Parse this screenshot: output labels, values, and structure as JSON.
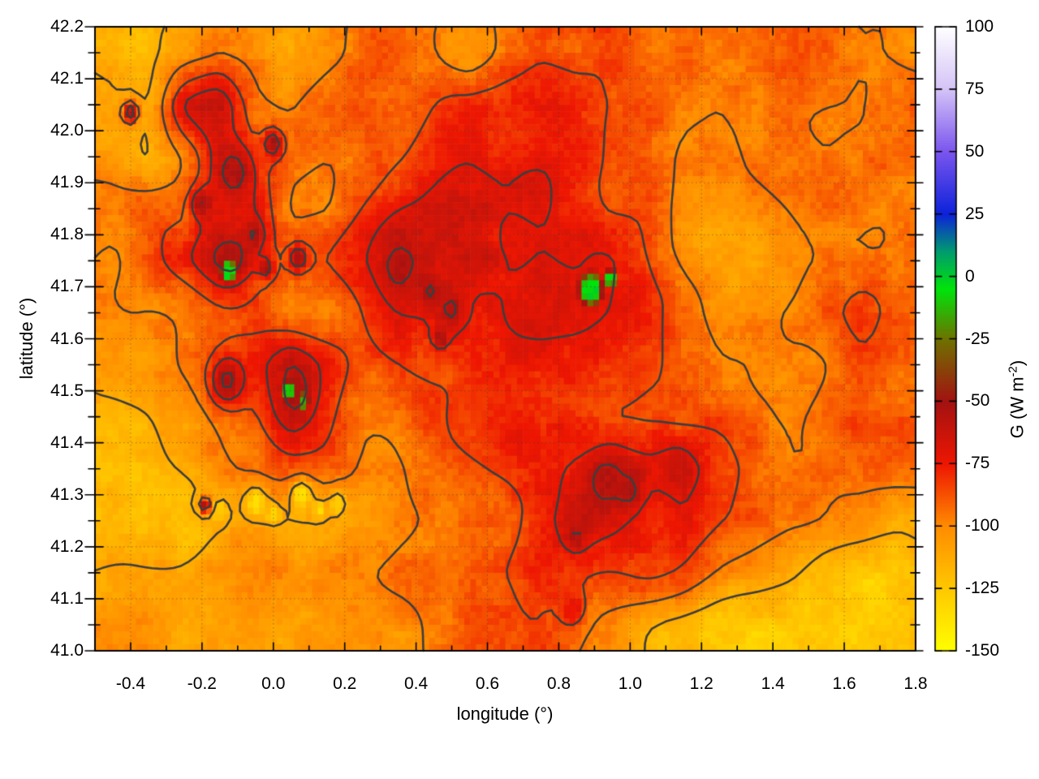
{
  "chart_data": {
    "type": "heatmap",
    "subtype": "pm3d map with contour lines",
    "title": "",
    "xlabel": "longitude (°)",
    "ylabel": "latitude (°)",
    "xlim": [
      -0.5,
      1.8
    ],
    "ylim": [
      41.0,
      42.2
    ],
    "grid_style": "dotted at major ticks",
    "xticks": {
      "values": [
        -0.4,
        -0.2,
        0.0,
        0.2,
        0.4,
        0.6,
        0.8,
        1.0,
        1.2,
        1.4,
        1.6,
        1.8
      ],
      "labels": [
        "-0.4",
        "-0.2",
        "0.0",
        "0.2",
        "0.4",
        "0.6",
        "0.8",
        "1.0",
        "1.2",
        "1.4",
        "1.6",
        "1.8"
      ],
      "minor_values": [
        -0.5,
        -0.3,
        -0.1,
        0.1,
        0.3,
        0.5,
        0.7,
        0.9,
        1.1,
        1.3,
        1.5,
        1.7
      ]
    },
    "yticks": {
      "values": [
        41.0,
        41.1,
        41.2,
        41.3,
        41.4,
        41.5,
        41.6,
        41.7,
        41.8,
        41.9,
        42.0,
        42.1,
        42.2
      ],
      "labels": [
        "41.0",
        "41.1",
        "41.2",
        "41.3",
        "41.4",
        "41.5",
        "41.6",
        "41.7",
        "41.8",
        "41.9",
        "42.0",
        "42.1",
        "42.2"
      ],
      "minor_values": [
        41.05,
        41.15,
        41.25,
        41.35,
        41.45,
        41.55,
        41.65,
        41.75,
        41.85,
        41.95,
        42.05,
        42.15
      ]
    },
    "colorbar": {
      "label_prefix": "G (W m",
      "label_sup": "-2",
      "label_suffix": ")",
      "range": [
        -150,
        100
      ],
      "tick_values": [
        100,
        75,
        50,
        25,
        0,
        -25,
        -50,
        -75,
        -100,
        -125,
        -150
      ],
      "tick_labels": [
        "100",
        "75",
        "50",
        "25",
        "0",
        "-25",
        "-50",
        "-75",
        "-100",
        "-125",
        "-150"
      ],
      "palette": [
        {
          "v": -150,
          "c": "#ffff00"
        },
        {
          "v": -125,
          "c": "#ffc800"
        },
        {
          "v": -100,
          "c": "#ff8c00"
        },
        {
          "v": -75,
          "c": "#ee1602"
        },
        {
          "v": -50,
          "c": "#a31211"
        },
        {
          "v": -25,
          "c": "#6e7200"
        },
        {
          "v": -5,
          "c": "#00e40a"
        },
        {
          "v": 10,
          "c": "#009c6e"
        },
        {
          "v": 25,
          "c": "#0c22da"
        },
        {
          "v": 50,
          "c": "#7b55ee"
        },
        {
          "v": 75,
          "c": "#d4c3f7"
        },
        {
          "v": 100,
          "c": "#ffffff"
        }
      ]
    },
    "contour_levels": [
      -112,
      -97,
      -84,
      -72,
      -60
    ],
    "colors": {
      "contour": "#3d3d3d",
      "border": "#000000",
      "grid_dots": "rgba(60,60,60,0.5)",
      "background": "#ffffff"
    },
    "heatmap_grid": {
      "units": "W m^-2",
      "lon": [
        -0.45,
        -0.35,
        -0.25,
        -0.15,
        -0.05,
        0.05,
        0.15,
        0.25,
        0.35,
        0.45,
        0.55,
        0.65,
        0.75,
        0.85,
        0.95,
        1.05,
        1.15,
        1.25,
        1.35,
        1.45,
        1.55,
        1.65,
        1.75
      ],
      "lat": [
        42.15,
        42.05,
        41.95,
        41.85,
        41.75,
        41.65,
        41.55,
        41.45,
        41.35,
        41.25,
        41.15,
        41.05
      ],
      "values_wm2": [
        [
          -112,
          -118,
          -112,
          -105,
          -108,
          -112,
          -100,
          -95,
          -100,
          -95,
          -105,
          -88,
          -82,
          -90,
          -85,
          -95,
          -90,
          -92,
          -95,
          -90,
          -95,
          -100,
          -98
        ],
        [
          -105,
          -115,
          -72,
          -60,
          -95,
          -100,
          -90,
          -85,
          -90,
          -88,
          -85,
          -75,
          -65,
          -70,
          -80,
          -82,
          -90,
          -95,
          -92,
          -88,
          -92,
          -95,
          -90
        ],
        [
          -98,
          -112,
          -95,
          -70,
          -85,
          -90,
          -95,
          -92,
          -85,
          -80,
          -78,
          -82,
          -78,
          -75,
          -82,
          -85,
          -95,
          -100,
          -98,
          -95,
          -98,
          -95,
          -92
        ],
        [
          -88,
          -85,
          -90,
          -75,
          -72,
          -100,
          -98,
          -85,
          -75,
          -72,
          -70,
          -75,
          -72,
          -78,
          -85,
          -80,
          -98,
          -105,
          -102,
          -98,
          -95,
          -92,
          -95
        ],
        [
          -95,
          -90,
          -78,
          -58,
          -80,
          -95,
          -85,
          -78,
          -62,
          -70,
          -68,
          -72,
          -70,
          -75,
          -72,
          -80,
          -95,
          -102,
          -105,
          -100,
          -95,
          -90,
          -92
        ],
        [
          -100,
          -95,
          -88,
          -85,
          -90,
          -95,
          -90,
          -85,
          -75,
          -72,
          -75,
          -72,
          -68,
          -70,
          -75,
          -85,
          -95,
          -100,
          -98,
          -95,
          -90,
          -85,
          -95
        ],
        [
          -108,
          -105,
          -95,
          -90,
          -85,
          -62,
          -78,
          -90,
          -85,
          -78,
          -75,
          -72,
          -75,
          -78,
          -80,
          -88,
          -92,
          -95,
          -95,
          -92,
          -95,
          -92,
          -98
        ],
        [
          -115,
          -112,
          -105,
          -98,
          -92,
          -68,
          -85,
          -95,
          -90,
          -85,
          -80,
          -78,
          -80,
          -82,
          -85,
          -90,
          -92,
          -90,
          -95,
          -95,
          -90,
          -92,
          -95
        ],
        [
          -118,
          -115,
          -110,
          -102,
          -100,
          -95,
          -92,
          -98,
          -95,
          -92,
          -88,
          -85,
          -80,
          -72,
          -62,
          -70,
          -68,
          -85,
          -92,
          -95,
          -95,
          -92,
          -90
        ],
        [
          -120,
          -122,
          -118,
          -115,
          -112,
          -115,
          -110,
          -105,
          -98,
          -95,
          -90,
          -88,
          -75,
          -68,
          -72,
          -78,
          -72,
          -88,
          -95,
          -98,
          -98,
          -95,
          -105
        ],
        [
          -110,
          -108,
          -105,
          -102,
          -100,
          -102,
          -100,
          -98,
          -95,
          -92,
          -90,
          -85,
          -80,
          -82,
          -85,
          -85,
          -90,
          -98,
          -102,
          -110,
          -122,
          -126,
          -124
        ],
        [
          -105,
          -102,
          -108,
          -105,
          -102,
          -105,
          -102,
          -100,
          -98,
          -95,
          -92,
          -90,
          -88,
          -95,
          -100,
          -108,
          -115,
          -124,
          -128,
          -130,
          -128,
          -126,
          -124
        ]
      ]
    },
    "features": [
      {
        "lon": -0.11,
        "lat": 41.92,
        "value": -55,
        "radius": 0.055,
        "type": "dark_red_patch"
      },
      {
        "lon": -0.2,
        "lat": 41.86,
        "value": -54,
        "radius": 0.03,
        "type": "dark_red_patch"
      },
      {
        "lon": 0.0,
        "lat": 41.975,
        "value": -53,
        "radius": 0.025,
        "type": "dark_red_patch"
      },
      {
        "lon": -0.4,
        "lat": 42.035,
        "value": -54,
        "radius": 0.02,
        "type": "dark_red_patch"
      },
      {
        "lon": -0.05,
        "lat": 41.8,
        "value": -52,
        "radius": 0.022,
        "type": "dark_red_patch"
      },
      {
        "lon": -0.11,
        "lat": 41.755,
        "value": -55,
        "radius": 0.04,
        "type": "dark_red_patch"
      },
      {
        "lon": 0.07,
        "lat": 41.755,
        "value": -52,
        "radius": 0.025,
        "type": "dark_red_patch"
      },
      {
        "lon": -0.02,
        "lat": 41.735,
        "value": -52,
        "radius": 0.018,
        "type": "dark_red_patch"
      },
      {
        "lon": -0.13,
        "lat": 41.52,
        "value": -55,
        "radius": 0.045,
        "type": "dark_red_patch"
      },
      {
        "lon": 0.065,
        "lat": 41.5,
        "value": -55,
        "radius": 0.045,
        "type": "dark_red_patch"
      },
      {
        "lon": 0.35,
        "lat": 41.73,
        "value": -54,
        "radius": 0.03,
        "type": "dark_red_patch"
      },
      {
        "lon": 0.44,
        "lat": 41.69,
        "value": -53,
        "radius": 0.022,
        "type": "dark_red_patch"
      },
      {
        "lon": 0.5,
        "lat": 41.655,
        "value": -55,
        "radius": 0.035,
        "type": "dark_red_patch"
      },
      {
        "lon": 0.47,
        "lat": 41.6,
        "value": -52,
        "radius": 0.018,
        "type": "dark_red_patch"
      },
      {
        "lon": 0.93,
        "lat": 41.33,
        "value": -56,
        "radius": 0.042,
        "type": "dark_red_patch"
      },
      {
        "lon": 1.0,
        "lat": 41.305,
        "value": -53,
        "radius": 0.028,
        "type": "dark_red_patch"
      },
      {
        "lon": 0.85,
        "lat": 41.22,
        "value": -55,
        "radius": 0.024,
        "type": "dark_red_patch"
      },
      {
        "lon": 1.13,
        "lat": 41.35,
        "value": -62,
        "radius": 0.03,
        "type": "dark_red_patch"
      },
      {
        "lon": -0.19,
        "lat": 41.28,
        "value": -56,
        "radius": 0.016,
        "type": "dark_red_patch"
      },
      {
        "lon": 0.84,
        "lat": 41.08,
        "value": -72,
        "radius": 0.035,
        "type": "red_patch"
      },
      {
        "lon": -0.125,
        "lat": 41.73,
        "value": -5,
        "radius": 0.017,
        "type": "green_patch"
      },
      {
        "lon": 0.042,
        "lat": 41.5,
        "value": -10,
        "radius": 0.014,
        "type": "green_patch"
      },
      {
        "lon": 0.085,
        "lat": 41.48,
        "value": -10,
        "radius": 0.012,
        "type": "green_patch"
      },
      {
        "lon": 0.89,
        "lat": 41.695,
        "value": -4,
        "radius": 0.026,
        "type": "green_patch"
      },
      {
        "lon": 0.945,
        "lat": 41.715,
        "value": -8,
        "radius": 0.014,
        "type": "green_patch"
      },
      {
        "lon": -0.05,
        "lat": 41.285,
        "value": -132,
        "radius": 0.03,
        "type": "bright_yellow_speckle"
      },
      {
        "lon": 0.08,
        "lat": 41.3,
        "value": -135,
        "radius": 0.025,
        "type": "bright_yellow_speckle"
      },
      {
        "lon": 0.18,
        "lat": 41.285,
        "value": -130,
        "radius": 0.02,
        "type": "bright_yellow_speckle"
      },
      {
        "lon": -0.15,
        "lat": 41.27,
        "value": -128,
        "radius": 0.02,
        "type": "bright_yellow_speckle"
      },
      {
        "lon": 0.0,
        "lat": 41.265,
        "value": -130,
        "radius": 0.018,
        "type": "bright_yellow_speckle"
      },
      {
        "lon": 0.13,
        "lat": 41.27,
        "value": -132,
        "radius": 0.015,
        "type": "bright_yellow_speckle"
      }
    ]
  }
}
